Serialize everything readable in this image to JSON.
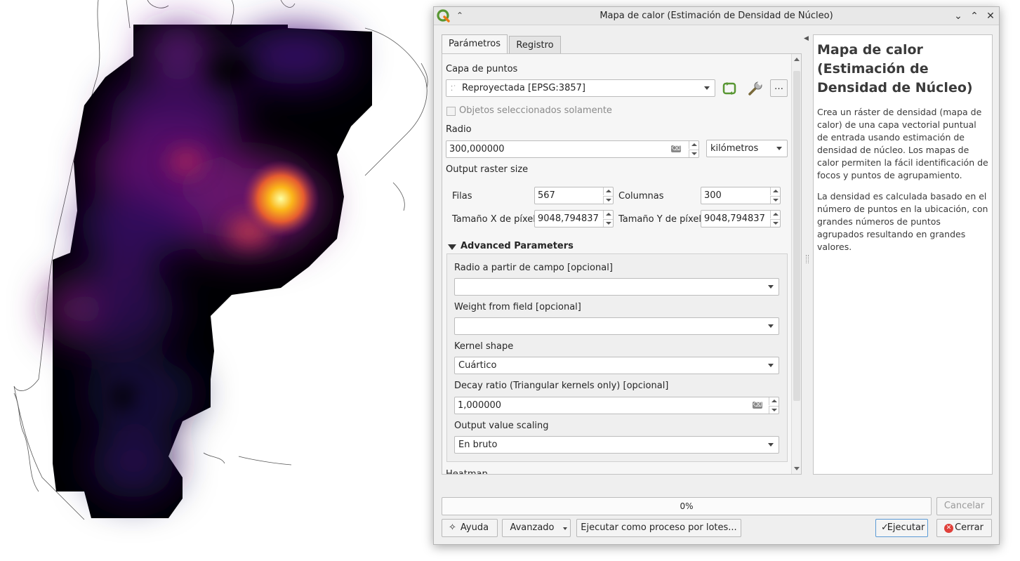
{
  "dialog": {
    "title": "Mapa de calor (Estimación de Densidad de Núcleo)",
    "app_icon": "qgis-logo-icon",
    "tabs": [
      {
        "label": "Parámetros",
        "active": true
      },
      {
        "label": "Registro",
        "active": false
      }
    ]
  },
  "params": {
    "point_layer_label": "Capa de puntos",
    "point_layer_value": "Reproyectada [EPSG:3857]",
    "selected_only_label": "Objetos seleccionados solamente",
    "radius_label": "Radio",
    "radius_value": "300,000000",
    "radius_unit": "kilómetros",
    "output_size_label": "Output raster size",
    "rows_label": "Filas",
    "rows_value": "567",
    "cols_label": "Columnas",
    "cols_value": "300",
    "pixel_x_label": "Tamaño X de píxel",
    "pixel_x_value": "9048,794837",
    "pixel_y_label": "Tamaño Y de píxel",
    "pixel_y_value": "9048,794837"
  },
  "advanced": {
    "header": "Advanced Parameters",
    "radius_field_label": "Radio a partir de campo [opcional]",
    "radius_field_value": "",
    "weight_field_label": "Weight from field [opcional]",
    "weight_field_value": "",
    "kernel_label": "Kernel shape",
    "kernel_value": "Cuártico",
    "decay_label": "Decay ratio (Triangular kernels only) [opcional]",
    "decay_value": "1,000000",
    "scaling_label": "Output value scaling",
    "scaling_value": "En bruto",
    "next_section_partial": "Heatmap"
  },
  "help": {
    "title": "Mapa de calor (Estimación de Densidad de Núcleo)",
    "paragraph1": "Crea un ráster de densidad (mapa de calor) de una capa vectorial puntual de entrada usando estimación de densidad de núcleo. Los mapas de calor permiten la fácil identificación de focos y puntos de agrupamiento.",
    "paragraph2": "La densidad es calculada basado en el número de puntos en la ubicación, con grandes números de puntos agrupados resultando en grandes valores."
  },
  "footer": {
    "progress_text": "0%",
    "progress_value": 0,
    "cancel_label": "Cancelar",
    "help_label": "Ayuda",
    "advanced_label": "Avanzado",
    "batch_label": "Ejecutar como proceso por lotes...",
    "run_label": "Ejecutar",
    "close_label": "Cerrar"
  },
  "colors": {
    "accent_green": "#589632",
    "close_red": "#e0403a",
    "heat_dark": "#000004",
    "heat_hot": "#fcffa4"
  }
}
